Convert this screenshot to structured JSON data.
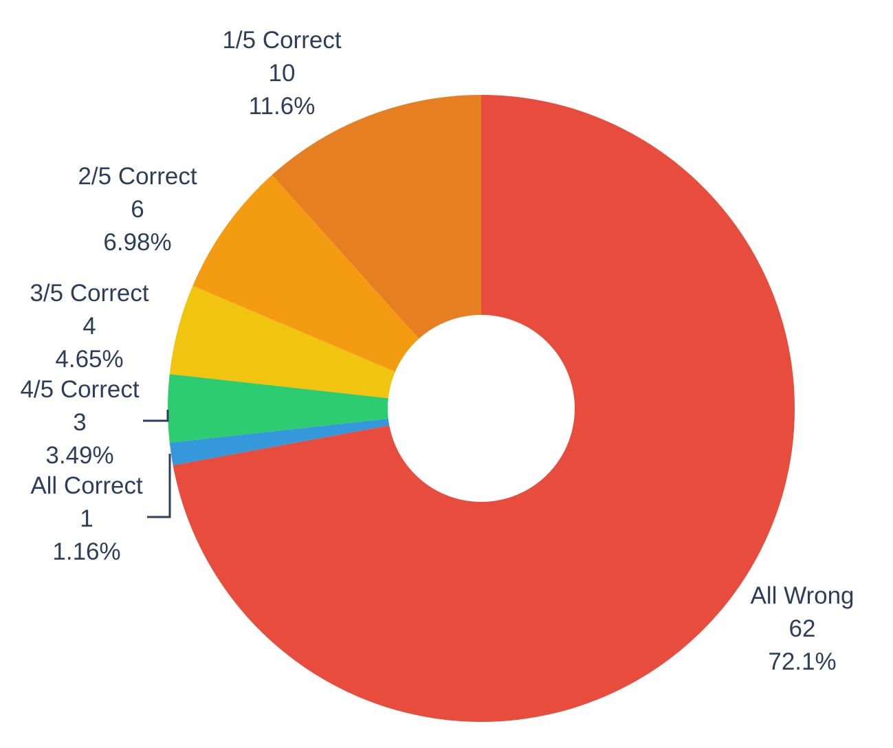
{
  "chart_data": {
    "type": "pie",
    "donut": true,
    "categories": [
      "All Wrong",
      "All Correct",
      "4/5 Correct",
      "3/5 Correct",
      "2/5 Correct",
      "1/5 Correct"
    ],
    "values": [
      62,
      1,
      3,
      4,
      6,
      10
    ],
    "percent_labels": [
      "72.1%",
      "1.16%",
      "3.49%",
      "4.65%",
      "6.98%",
      "11.6%"
    ],
    "colors": [
      "#e74c3c",
      "#3498db",
      "#2ecc71",
      "#f1c40f",
      "#f39c12",
      "#e67e22"
    ],
    "start": "12 o'clock, clockwise",
    "legend": "none (labels beside slices)"
  }
}
